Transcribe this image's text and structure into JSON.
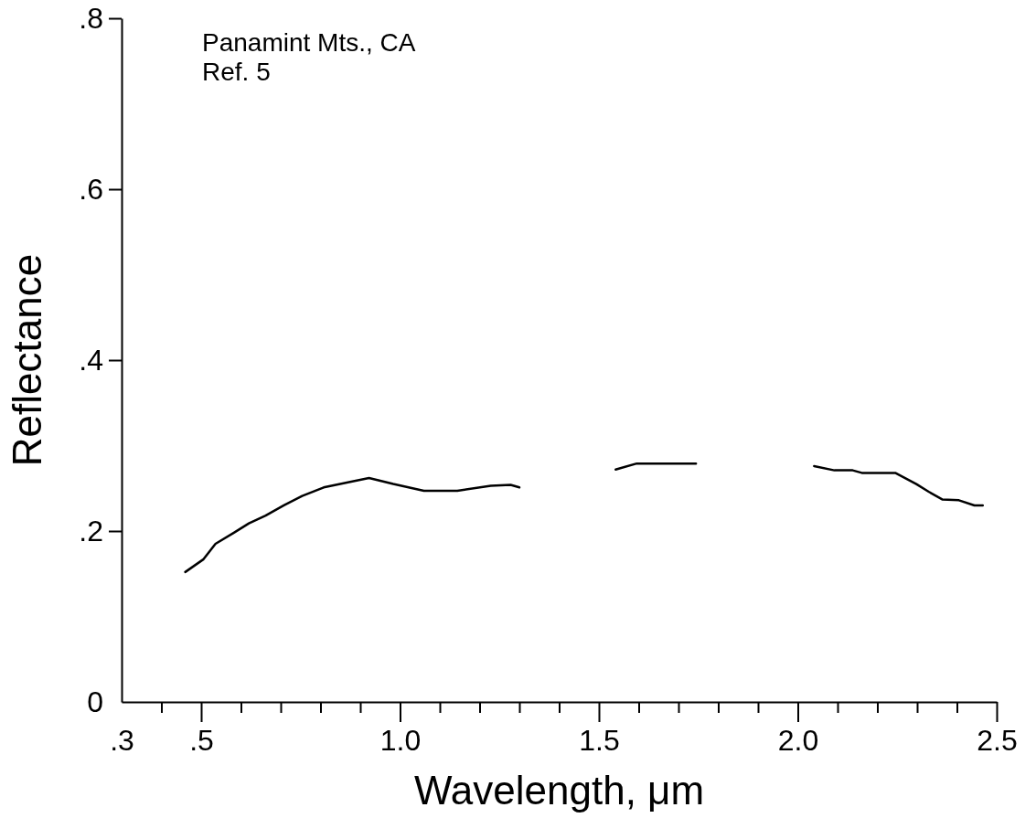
{
  "chart_data": {
    "type": "line",
    "xlabel": "Wavelength, μm",
    "ylabel": "Reflectance",
    "annotations": [
      "Panamint Mts., CA",
      "Ref. 5"
    ],
    "xlim": [
      0.3,
      2.5
    ],
    "ylim": [
      0,
      0.8
    ],
    "xticks": [
      {
        "value": 0.3,
        "label": ".3"
      },
      {
        "value": 0.4,
        "label": null
      },
      {
        "value": 0.5,
        "label": ".5"
      },
      {
        "value": 0.6,
        "label": null
      },
      {
        "value": 0.7,
        "label": null
      },
      {
        "value": 0.8,
        "label": null
      },
      {
        "value": 0.9,
        "label": null
      },
      {
        "value": 1.0,
        "label": "1.0"
      },
      {
        "value": 1.1,
        "label": null
      },
      {
        "value": 1.2,
        "label": null
      },
      {
        "value": 1.3,
        "label": null
      },
      {
        "value": 1.4,
        "label": null
      },
      {
        "value": 1.5,
        "label": "1.5"
      },
      {
        "value": 1.6,
        "label": null
      },
      {
        "value": 1.7,
        "label": null
      },
      {
        "value": 1.8,
        "label": null
      },
      {
        "value": 1.9,
        "label": null
      },
      {
        "value": 2.0,
        "label": "2.0"
      },
      {
        "value": 2.1,
        "label": null
      },
      {
        "value": 2.2,
        "label": null
      },
      {
        "value": 2.3,
        "label": null
      },
      {
        "value": 2.4,
        "label": null
      },
      {
        "value": 2.5,
        "label": "2.5"
      }
    ],
    "yticks": [
      {
        "value": 0,
        "label": "0"
      },
      {
        "value": 0.2,
        "label": ".2"
      },
      {
        "value": 0.4,
        "label": ".4"
      },
      {
        "value": 0.6,
        "label": ".6"
      },
      {
        "value": 0.8,
        "label": ".8"
      }
    ],
    "grid": false,
    "line_style": "solid",
    "marker": "none",
    "series": [
      {
        "color": "#000000",
        "x": [
          0.46,
          0.506,
          0.536,
          0.586,
          0.62,
          0.662,
          0.708,
          0.754,
          0.808,
          0.869,
          0.922,
          0.983,
          1.06,
          1.144,
          1.228,
          1.278,
          1.3,
          1.42,
          1.542,
          1.595,
          1.744,
          1.9,
          2.041,
          2.092,
          2.138,
          2.161,
          2.245,
          2.298,
          2.329,
          2.363,
          2.405,
          2.444,
          2.465
        ],
        "values": [
          0.152,
          0.167,
          0.185,
          0.199,
          0.209,
          0.218,
          0.23,
          0.241,
          0.251,
          0.257,
          0.262,
          0.255,
          0.247,
          0.247,
          0.253,
          0.254,
          0.251,
          null,
          0.272,
          0.279,
          0.279,
          null,
          0.276,
          0.271,
          0.271,
          0.268,
          0.268,
          0.255,
          0.246,
          0.237,
          0.236,
          0.23,
          0.23
        ]
      }
    ]
  }
}
